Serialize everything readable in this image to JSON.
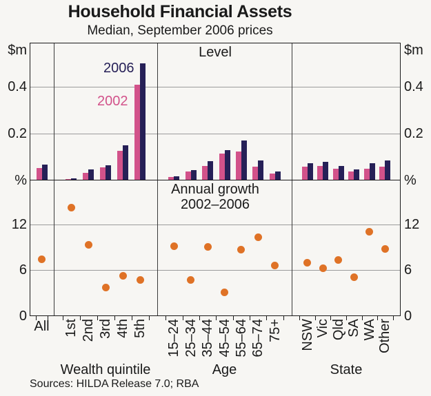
{
  "title": "Household Financial Assets",
  "subtitle": "Median, September 2006 prices",
  "source_note": "Sources: HILDA Release 7.0; RBA",
  "chart_data": {
    "type": "combo",
    "title": "Household Financial Assets",
    "subtitle": "Median, September 2006 prices",
    "categories": [
      "All",
      "1st",
      "2nd",
      "3rd",
      "4th",
      "5th",
      "15–24",
      "25–34",
      "35–44",
      "45–54",
      "55–64",
      "65–74",
      "75+",
      "NSW",
      "Vic",
      "Qld",
      "SA",
      "WA",
      "Other"
    ],
    "sections": [
      {
        "label": "",
        "categories": [
          "All"
        ]
      },
      {
        "label": "Wealth quintile",
        "categories": [
          "1st",
          "2nd",
          "3rd",
          "4th",
          "5th"
        ]
      },
      {
        "label": "Age",
        "categories": [
          "15–24",
          "25–34",
          "35–44",
          "45–54",
          "55–64",
          "65–74",
          "75+"
        ]
      },
      {
        "label": "State",
        "categories": [
          "NSW",
          "Vic",
          "Qld",
          "SA",
          "WA",
          "Other"
        ]
      }
    ],
    "panels": [
      {
        "type": "bar",
        "title": "Level",
        "ylabel": "$m",
        "ylim": [
          0,
          0.59
        ],
        "yticks": [
          0.2,
          0.4
        ],
        "grid": true,
        "legend_position": "inside-top-left",
        "series": [
          {
            "name": "2002",
            "color": "#d2528a",
            "values": [
              0.053,
              0.004,
              0.03,
              0.055,
              0.125,
              0.41,
              0.012,
              0.037,
              0.06,
              0.115,
              0.122,
              0.058,
              0.028,
              0.057,
              0.061,
              0.049,
              0.037,
              0.049,
              0.057
            ]
          },
          {
            "name": "2006",
            "color": "#262057",
            "values": [
              0.068,
              0.008,
              0.045,
              0.065,
              0.15,
              0.5,
              0.016,
              0.044,
              0.082,
              0.13,
              0.171,
              0.085,
              0.036,
              0.073,
              0.079,
              0.061,
              0.045,
              0.073,
              0.083
            ]
          }
        ]
      },
      {
        "type": "scatter",
        "title": "Annual growth 2002–2006",
        "title_lines": [
          "Annual growth",
          "2002–2006"
        ],
        "ylabel": "%",
        "ylim": [
          0,
          17.8
        ],
        "yticks": [
          6,
          12
        ],
        "grid": true,
        "series": [
          {
            "name": "Annual growth 2002–2006",
            "color": "#df7226",
            "values": [
              7.4,
              14.2,
              9.3,
              3.7,
              5.2,
              4.7,
              9.1,
              4.7,
              9.0,
              3.1,
              8.7,
              10.3,
              6.6,
              7.0,
              6.2,
              7.3,
              5.1,
              11.0,
              8.8
            ]
          }
        ]
      }
    ]
  }
}
